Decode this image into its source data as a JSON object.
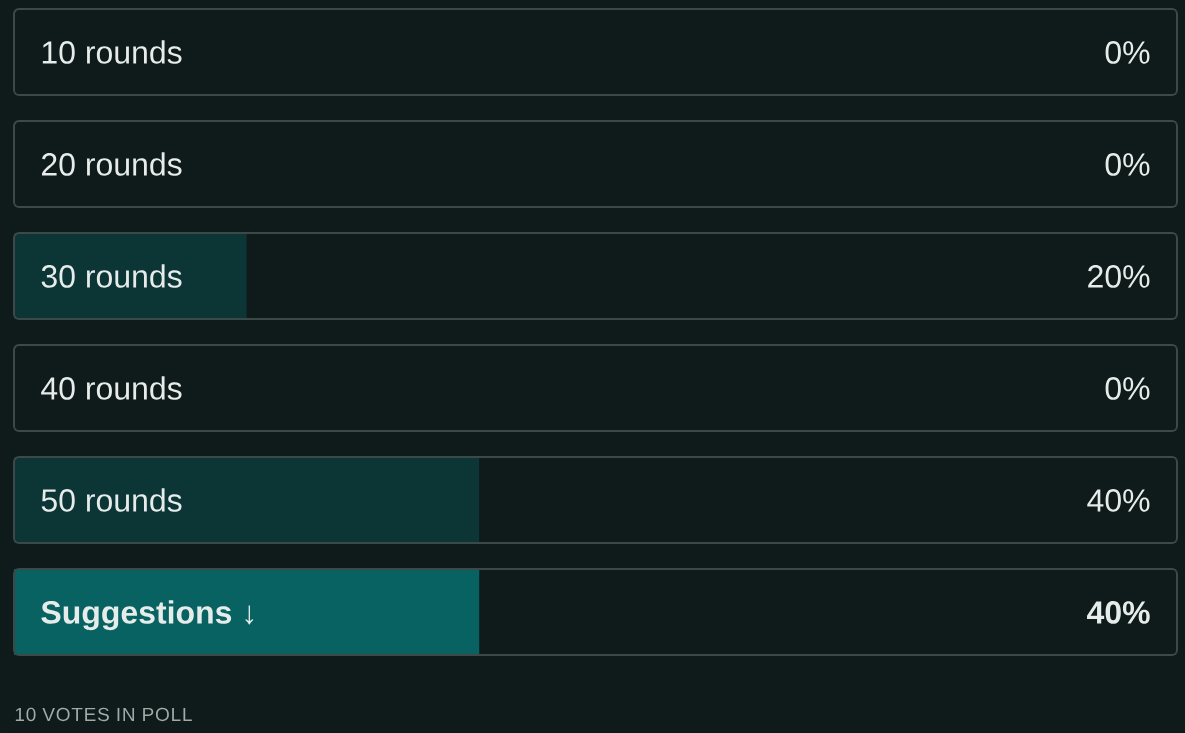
{
  "chart_data": {
    "type": "bar",
    "orientation": "horizontal",
    "categories": [
      "10 rounds",
      "20 rounds",
      "30 rounds",
      "40 rounds",
      "50 rounds",
      "**Suggestions** ↓"
    ],
    "values": [
      0,
      0,
      20,
      0,
      40,
      40
    ],
    "colors": [
      "#0c3536",
      "#0c3536",
      "#0c3536",
      "#0c3536",
      "#0c3536",
      "#086262"
    ],
    "value_labels": [
      "0%",
      "0%",
      "20%",
      "0%",
      "40%",
      "**40%**"
    ],
    "xlim": [
      0,
      100
    ],
    "tick_labels": "y",
    "annotations": [
      "10 VOTES IN POLL"
    ]
  }
}
